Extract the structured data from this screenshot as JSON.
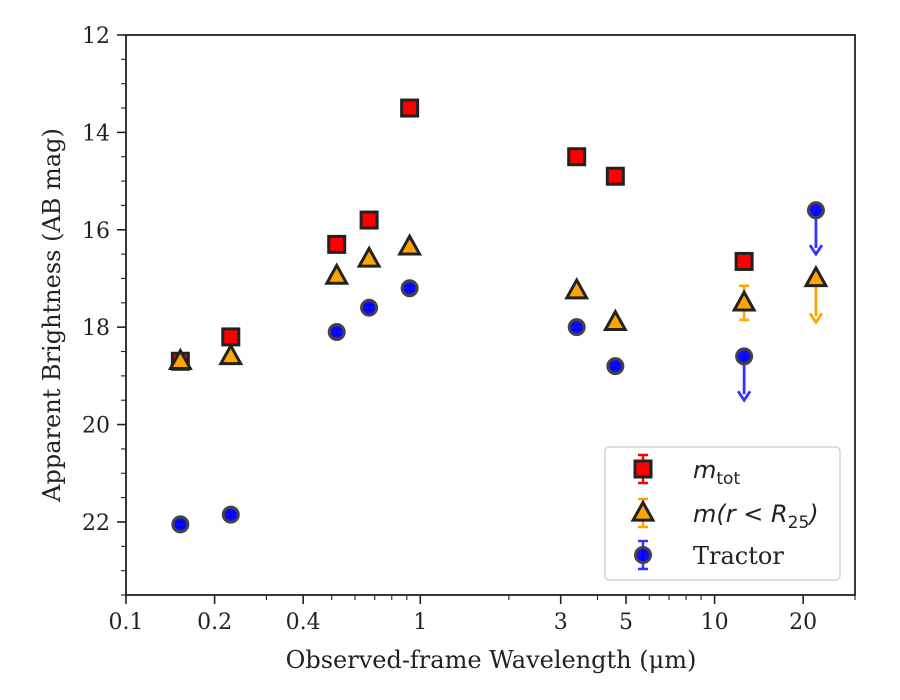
{
  "chart_data": {
    "type": "scatter",
    "xlabel": "Observed-frame Wavelength (μm)",
    "ylabel": "Apparent Brightness (AB mag)",
    "xscale": "log",
    "xlim": [
      0.1,
      30
    ],
    "ylim": [
      23.5,
      12
    ],
    "y_inverted": true,
    "xticks": [
      0.1,
      0.2,
      0.4,
      1,
      3,
      5,
      10,
      20
    ],
    "xtick_labels": [
      "0.1",
      "0.2",
      "0.4",
      "1",
      "3",
      "5",
      "10",
      "20"
    ],
    "yticks": [
      12,
      14,
      16,
      18,
      20,
      22
    ],
    "ytick_labels": [
      "12",
      "14",
      "16",
      "18",
      "20",
      "22"
    ],
    "legend_position": "lower-right",
    "series": [
      {
        "name": "m_tot",
        "name_main": "m",
        "name_sub": "tot",
        "marker": "square",
        "color": "#ff0000",
        "edge_color": "#222222",
        "errorbar_color": "#ff0000",
        "points": [
          {
            "x": 0.153,
            "y": 18.7,
            "yerr": 0.05
          },
          {
            "x": 0.227,
            "y": 18.2,
            "yerr": 0.05
          },
          {
            "x": 0.52,
            "y": 16.3,
            "yerr": 0.05
          },
          {
            "x": 0.67,
            "y": 15.8,
            "yerr": 0.05
          },
          {
            "x": 0.92,
            "y": 13.5,
            "yerr": 0.05
          },
          {
            "x": 3.4,
            "y": 14.5,
            "yerr": 0.05
          },
          {
            "x": 4.6,
            "y": 14.9,
            "yerr": 0.05
          },
          {
            "x": 12.6,
            "y": 16.65,
            "yerr": 0.05
          }
        ]
      },
      {
        "name": "m(r < R_25)",
        "name_main": "m(r < R",
        "name_sub": "25",
        "name_tail": ")",
        "marker": "triangle",
        "color": "#ffa500",
        "edge_color": "#222222",
        "errorbar_color": "#ffa500",
        "points": [
          {
            "x": 0.153,
            "y": 18.7,
            "yerr": 0.05
          },
          {
            "x": 0.227,
            "y": 18.6,
            "yerr": 0.05
          },
          {
            "x": 0.52,
            "y": 16.95,
            "yerr": 0.05
          },
          {
            "x": 0.67,
            "y": 16.6,
            "yerr": 0.05
          },
          {
            "x": 0.92,
            "y": 16.35,
            "yerr": 0.05
          },
          {
            "x": 3.4,
            "y": 17.25,
            "yerr": 0.05
          },
          {
            "x": 4.6,
            "y": 17.9,
            "yerr": 0.05
          },
          {
            "x": 12.6,
            "y": 17.5,
            "yerr": 0.35
          },
          {
            "x": 22.1,
            "y": 17.0,
            "upper_limit_to": 17.9
          }
        ]
      },
      {
        "name": "Tractor",
        "marker": "circle",
        "color": "#0000ff",
        "edge_color": "#444444",
        "errorbar_color": "#3333ff",
        "points": [
          {
            "x": 0.153,
            "y": 22.05,
            "yerr": 0.05
          },
          {
            "x": 0.227,
            "y": 21.85,
            "yerr": 0.05
          },
          {
            "x": 0.52,
            "y": 18.1,
            "yerr": 0.05
          },
          {
            "x": 0.67,
            "y": 17.6,
            "yerr": 0.05
          },
          {
            "x": 0.92,
            "y": 17.2,
            "yerr": 0.05
          },
          {
            "x": 3.4,
            "y": 18.0,
            "yerr": 0.05
          },
          {
            "x": 4.6,
            "y": 18.8,
            "yerr": 0.05
          },
          {
            "x": 12.6,
            "y": 18.6,
            "upper_limit_to": 19.5
          },
          {
            "x": 22.1,
            "y": 15.6,
            "upper_limit_to": 16.5
          }
        ]
      }
    ]
  }
}
